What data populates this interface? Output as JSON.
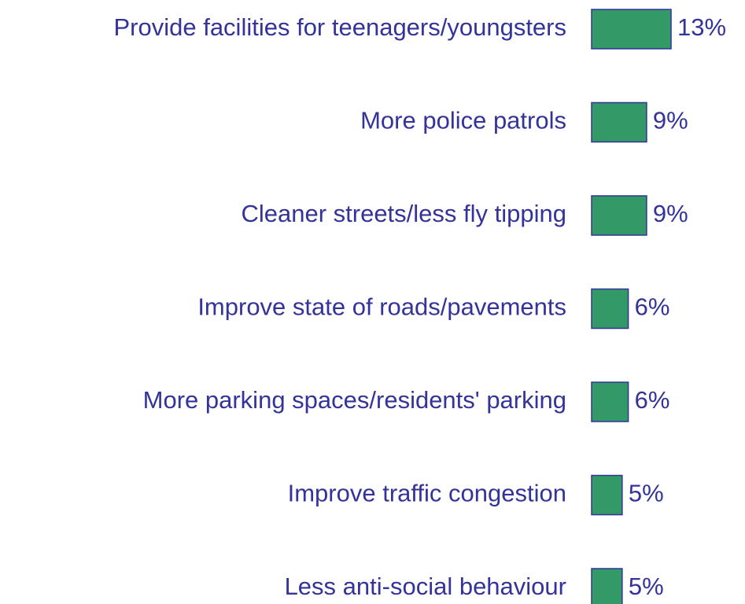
{
  "chart_data": {
    "type": "bar",
    "orientation": "horizontal",
    "categories": [
      "Provide facilities for teenagers/youngsters",
      "More police patrols",
      "Cleaner streets/less fly tipping",
      "Improve state of roads/pavements",
      "More parking spaces/residents' parking",
      "Improve traffic congestion",
      "Less anti-social behaviour"
    ],
    "values": [
      13,
      9,
      9,
      6,
      6,
      5,
      5
    ],
    "value_labels": [
      "13%",
      "9%",
      "9%",
      "6%",
      "6%",
      "5%",
      "5%"
    ],
    "color": "#339966"
  }
}
